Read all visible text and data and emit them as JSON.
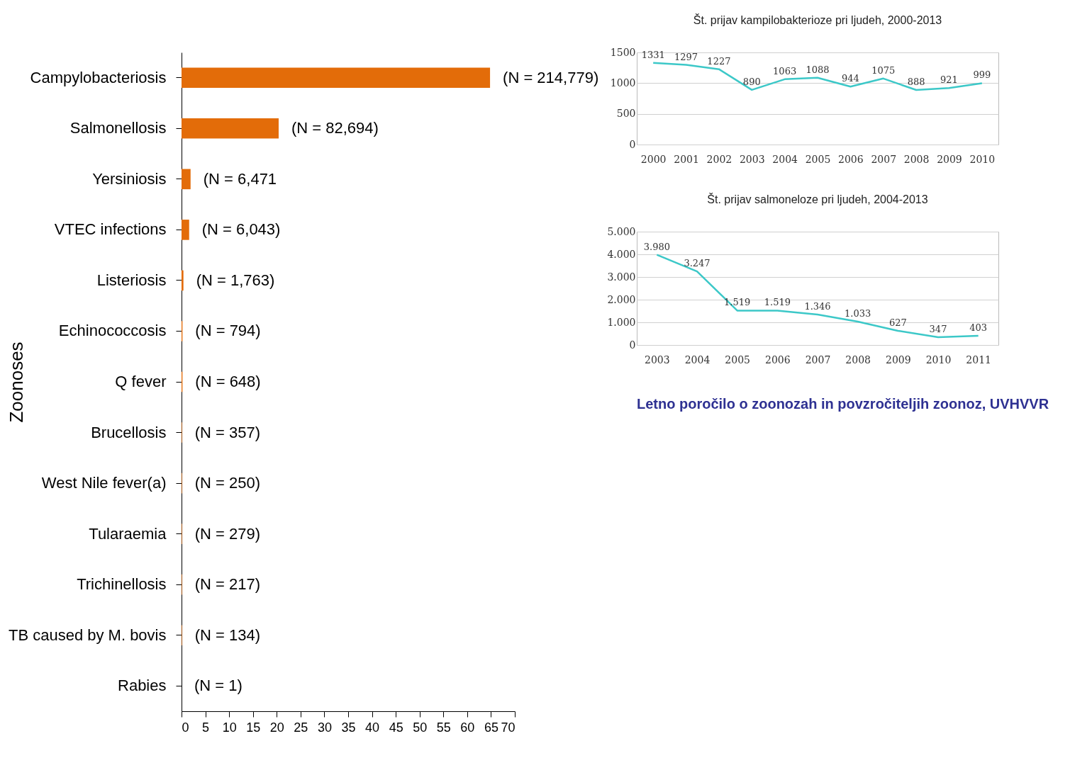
{
  "chart_data": [
    {
      "type": "bar",
      "orientation": "horizontal",
      "ylabel": "Zoonoses",
      "categories": [
        "Campylobacteriosis",
        "Salmonellosis",
        "Yersiniosis",
        "VTEC infections",
        "Listeriosis",
        "Echinococcosis",
        "Q fever",
        "Brucellosis",
        "West Nile fever(a)",
        "Tularaemia",
        "Trichinellosis",
        "TB caused by M. bovis",
        "Rabies"
      ],
      "values": [
        64.8,
        20.4,
        1.9,
        1.6,
        0.4,
        0.2,
        0.2,
        0.1,
        0.1,
        0.1,
        0.1,
        0.1,
        0
      ],
      "annotations": [
        "(N = 214,779)",
        "(N = 82,694)",
        "(N = 6,471",
        "(N = 6,043)",
        "(N = 1,763)",
        "(N = 794)",
        "(N = 648)",
        "(N = 357)",
        "(N = 250)",
        "(N = 279)",
        "(N = 217)",
        "(N = 134)",
        "(N = 1)"
      ],
      "color": "#e36c09",
      "xlim": [
        0,
        70
      ],
      "xticks": [
        0,
        5,
        10,
        15,
        20,
        25,
        30,
        35,
        40,
        45,
        50,
        55,
        60,
        65,
        70
      ]
    },
    {
      "type": "line",
      "title": "Št. prijav kampilobakterioze pri ljudeh, 2000-2013",
      "categories": [
        "2000",
        "2001",
        "2002",
        "2003",
        "2004",
        "2005",
        "2006",
        "2007",
        "2008",
        "2009",
        "2010"
      ],
      "values": [
        1331,
        1297,
        1227,
        890,
        1063,
        1088,
        944,
        1075,
        888,
        921,
        999
      ],
      "color": "#3cc8c8",
      "data_labels": true,
      "ylim": [
        0,
        1500
      ],
      "yticks": [
        0,
        500,
        1000,
        1500
      ],
      "grid": "y"
    },
    {
      "type": "line",
      "title": "Št. prijav salmoneloze pri ljudeh, 2004-2013",
      "categories": [
        "2003",
        "2004",
        "2005",
        "2006",
        "2007",
        "2008",
        "2009",
        "2010",
        "2011"
      ],
      "values": [
        3980,
        3247,
        1519,
        1519,
        1346,
        1033,
        627,
        347,
        403
      ],
      "value_labels": [
        "3.980",
        "3.247",
        "1.519",
        "1.519",
        "1.346",
        "1.033",
        "627",
        "347",
        "403"
      ],
      "color": "#3cc8c8",
      "ylim": [
        0,
        5000
      ],
      "yticks": [
        0,
        {
          "value": 1000,
          "label": "1.000"
        },
        {
          "value": 2000,
          "label": "2.000"
        },
        {
          "value": 3000,
          "label": "3.000"
        },
        {
          "value": 4000,
          "label": "4.000"
        },
        {
          "value": 5000,
          "label": "5.000"
        }
      ],
      "grid": "y",
      "annotations": [
        "Letno poročilo o zoonozah in povzročiteljih zoonoz, UVHVVR"
      ]
    }
  ]
}
